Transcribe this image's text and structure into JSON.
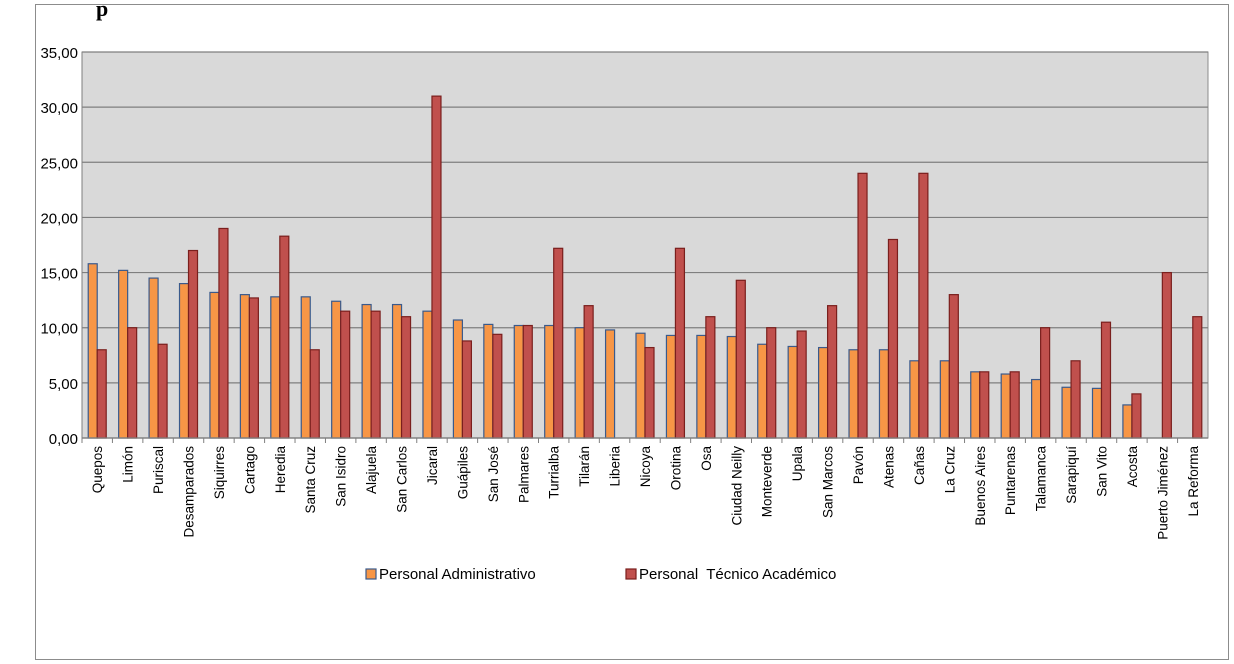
{
  "header_fragment": "p",
  "chart_data": {
    "type": "bar",
    "title": "",
    "xlabel": "",
    "ylabel": "",
    "ylim": [
      0,
      35
    ],
    "yticks": [
      "0,00",
      "5,00",
      "10,00",
      "15,00",
      "20,00",
      "25,00",
      "30,00",
      "35,00"
    ],
    "ytick_values": [
      0,
      5,
      10,
      15,
      20,
      25,
      30,
      35
    ],
    "grid": true,
    "legend_position": "bottom",
    "categories": [
      "Quepos",
      "Limón",
      "Puriscal",
      "Desamparados",
      "Siquirres",
      "Cartago",
      "Heredia",
      "Santa Cruz",
      "San Isidro",
      "Alajuela",
      "San Carlos",
      "Jicaral",
      "Guápiles",
      "San José",
      "Palmares",
      "Turrialba",
      "Tilarán",
      "Liberia",
      "Nicoya",
      "Orotina",
      "Osa",
      "Ciudad Neilly",
      "Monteverde",
      "Upala",
      "San Marcos",
      "Pavón",
      "Atenas",
      "Cañas",
      "La Cruz",
      "Buenos Aires",
      "Puntarenas",
      "Talamanca",
      "Sarapiquí",
      "San Vito",
      "Acosta",
      "Puerto Jiménez",
      "La Reforma"
    ],
    "series": [
      {
        "name": "Personal Administrativo",
        "color": "#f79646",
        "values": [
          15.8,
          15.2,
          14.5,
          14.0,
          13.2,
          13.0,
          12.8,
          12.8,
          12.4,
          12.1,
          12.1,
          11.5,
          10.7,
          10.3,
          10.2,
          10.2,
          10.0,
          9.8,
          9.5,
          9.3,
          9.3,
          9.2,
          8.5,
          8.3,
          8.2,
          8.0,
          8.0,
          7.0,
          7.0,
          6.0,
          5.8,
          5.3,
          4.6,
          4.5,
          3.0,
          0,
          0
        ]
      },
      {
        "name": "Personal  Técnico Académico",
        "color": "#c0504d",
        "values": [
          8.0,
          10.0,
          8.5,
          17.0,
          19.0,
          12.7,
          18.3,
          8.0,
          11.5,
          11.5,
          11.0,
          31.0,
          8.8,
          9.4,
          10.2,
          17.2,
          12.0,
          0,
          8.2,
          17.2,
          11.0,
          14.3,
          10.0,
          9.7,
          12.0,
          24.0,
          18.0,
          24.0,
          13.0,
          6.0,
          6.0,
          10.0,
          7.0,
          10.5,
          4.0,
          15.0,
          11.0
        ]
      }
    ]
  }
}
